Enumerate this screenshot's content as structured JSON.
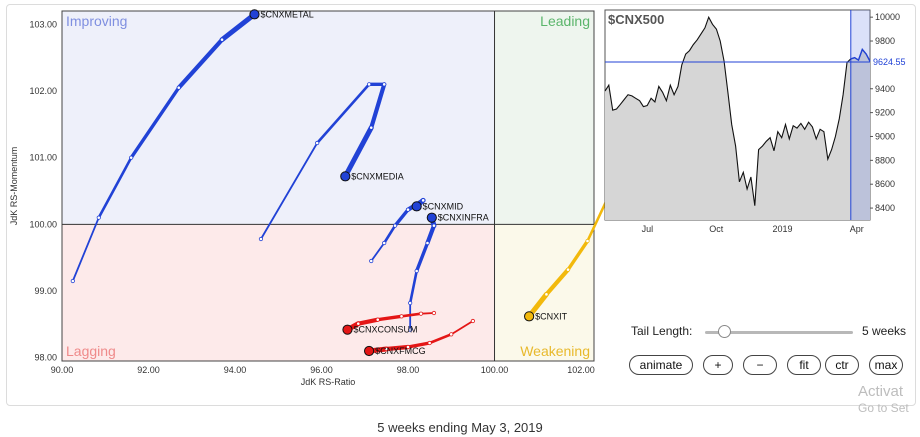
{
  "rrg": {
    "xlabel": "JdK RS-Ratio",
    "ylabel": "JdK RS-Momentum",
    "xlim": [
      90,
      102.3
    ],
    "ylim": [
      97.95,
      103.2
    ],
    "xticks": [
      "90.00",
      "92.00",
      "94.00",
      "96.00",
      "98.00",
      "100.00",
      "102.00"
    ],
    "yticks": [
      "98.00",
      "99.00",
      "100.00",
      "101.00",
      "102.00",
      "103.00"
    ],
    "quadrants": {
      "improving": "Improving",
      "leading": "Leading",
      "lagging": "Lagging",
      "weakening": "Weakening"
    },
    "colors": {
      "improving_bg": "#eef0fa",
      "leading_bg": "#eef5ee",
      "lagging_bg": "#fdeaea",
      "weakening_bg": "#fbf9ea",
      "improving_text": "#7f8fe0",
      "leading_text": "#5bb56b",
      "lagging_text": "#ef8a8a",
      "weakening_text": "#e8b92c"
    }
  },
  "chart_data": {
    "type": "scatter",
    "title": "",
    "xlabel": "JdK RS-Ratio",
    "ylabel": "JdK RS-Momentum",
    "series": [
      {
        "name": "$CNXMETAL",
        "color": "#2142d6",
        "points": [
          [
            90.25,
            99.15
          ],
          [
            90.85,
            100.1
          ],
          [
            91.6,
            101.0
          ],
          [
            92.7,
            102.05
          ],
          [
            93.7,
            102.77
          ],
          [
            94.45,
            103.15
          ]
        ]
      },
      {
        "name": "$CNXMEDIA",
        "color": "#2142d6",
        "points": [
          [
            94.6,
            99.78
          ],
          [
            95.9,
            101.22
          ],
          [
            97.1,
            102.1
          ],
          [
            97.45,
            102.1
          ],
          [
            97.15,
            101.45
          ],
          [
            96.55,
            100.72
          ]
        ]
      },
      {
        "name": "$CNXMID",
        "color": "#2142d6",
        "points": [
          [
            97.15,
            99.45
          ],
          [
            97.45,
            99.72
          ],
          [
            97.7,
            99.98
          ],
          [
            98.0,
            100.22
          ],
          [
            98.35,
            100.36
          ],
          [
            98.2,
            100.27
          ]
        ]
      },
      {
        "name": "$CNXINFRA",
        "color": "#2142d6",
        "points": [
          [
            98.05,
            98.42
          ],
          [
            98.05,
            98.82
          ],
          [
            98.2,
            99.3
          ],
          [
            98.45,
            99.72
          ],
          [
            98.6,
            99.98
          ],
          [
            98.55,
            100.1
          ]
        ]
      },
      {
        "name": "$CNXCONSUM",
        "color": "#e41616",
        "points": [
          [
            98.6,
            98.67
          ],
          [
            98.3,
            98.66
          ],
          [
            97.85,
            98.62
          ],
          [
            97.3,
            98.57
          ],
          [
            96.85,
            98.51
          ],
          [
            96.6,
            98.42
          ]
        ]
      },
      {
        "name": "$CNXFMCG",
        "color": "#e41616",
        "points": [
          [
            99.5,
            98.55
          ],
          [
            99.0,
            98.35
          ],
          [
            98.5,
            98.22
          ],
          [
            98.0,
            98.16
          ],
          [
            97.5,
            98.13
          ],
          [
            97.1,
            98.1
          ]
        ]
      },
      {
        "name": "$CNXIT",
        "color": "#f2b90c",
        "points": [
          [
            102.85,
            100.88
          ],
          [
            102.65,
            100.44
          ],
          [
            102.15,
            99.75
          ],
          [
            101.7,
            99.32
          ],
          [
            101.2,
            98.95
          ],
          [
            100.8,
            98.62
          ]
        ]
      }
    ]
  },
  "index_chart": {
    "label": "$CNX500",
    "current_value": "9624.55",
    "yticks": [
      "10000",
      "9800",
      "9600",
      "9400",
      "9200",
      "9000",
      "8800",
      "8600",
      "8400"
    ],
    "xticks": [
      "Jul",
      "Oct",
      "2019",
      "Apr"
    ],
    "ylim": [
      8300,
      10060
    ],
    "series": [
      9380,
      9430,
      9220,
      9230,
      9270,
      9310,
      9350,
      9340,
      9320,
      9300,
      9250,
      9260,
      9320,
      9290,
      9420,
      9370,
      9300,
      9430,
      9350,
      9420,
      9600,
      9690,
      9720,
      9770,
      9810,
      9860,
      9910,
      10000,
      9940,
      9900,
      9800,
      9630,
      9370,
      9100,
      8920,
      8620,
      8700,
      8560,
      8660,
      8420,
      8890,
      8920,
      8960,
      8990,
      8880,
      9040,
      8990,
      9100,
      8980,
      9090,
      9070,
      9110,
      9060,
      9120,
      9080,
      8980,
      9060,
      9040,
      8810,
      8890,
      9000,
      9150,
      9350,
      9620,
      9650,
      9660,
      9640,
      9730,
      9690,
      9630
    ]
  },
  "controls": {
    "tail_label": "Tail Length:",
    "tail_value": "5 weeks",
    "tail_fraction": 0.1,
    "buttons": [
      "animate",
      "+",
      "−",
      "fit",
      "ctr",
      "max"
    ]
  },
  "caption": "5 weeks ending May 3, 2019",
  "watermark": [
    "Activat",
    "Go to Set"
  ]
}
